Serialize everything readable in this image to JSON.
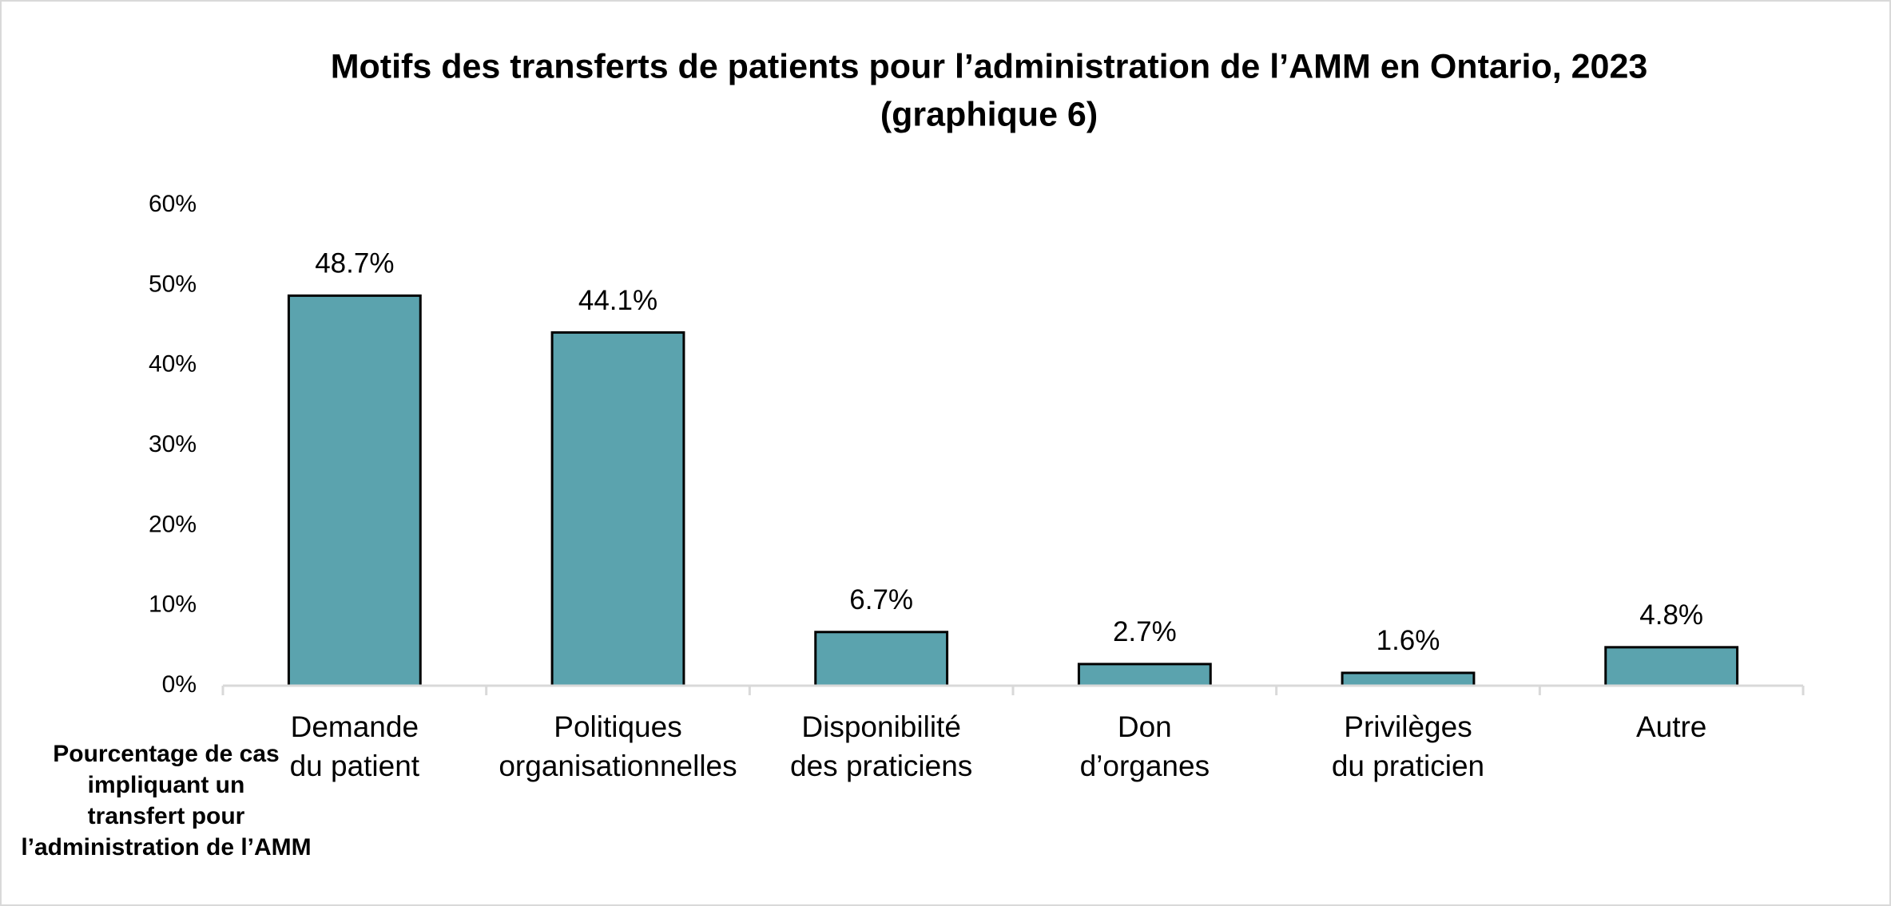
{
  "chart_data": {
    "type": "bar",
    "title": [
      "Motifs des transferts de patients pour l’administration de l’AMM en Ontario, 2023",
      "(graphique 6)"
    ],
    "ylabel": [
      "Pourcentage de cas",
      "impliquant un",
      "transfert pour",
      "l’administration de l’AMM"
    ],
    "categories": [
      [
        "Demande",
        "du patient"
      ],
      [
        "Politiques",
        "organisationnelles"
      ],
      [
        "Disponibilité",
        "des praticiens"
      ],
      [
        "Don",
        "d’organes"
      ],
      [
        "Privilèges",
        "du praticien"
      ],
      [
        "Autre"
      ]
    ],
    "values": [
      48.7,
      44.1,
      6.7,
      2.7,
      1.6,
      4.8
    ],
    "value_labels": [
      "48.7%",
      "44.1%",
      "6.7%",
      "2.7%",
      "1.6%",
      "4.8%"
    ],
    "color": "#5ba3ae",
    "ylim": [
      0,
      60
    ],
    "yticks": [
      {
        "value": 0,
        "label": "0%"
      },
      {
        "value": 10,
        "label": "10%"
      },
      {
        "value": 20,
        "label": "20%"
      },
      {
        "value": 30,
        "label": "30%"
      },
      {
        "value": 40,
        "label": "40%"
      },
      {
        "value": 50,
        "label": "50%"
      },
      {
        "value": 60,
        "label": "60%"
      }
    ],
    "grid": false
  }
}
